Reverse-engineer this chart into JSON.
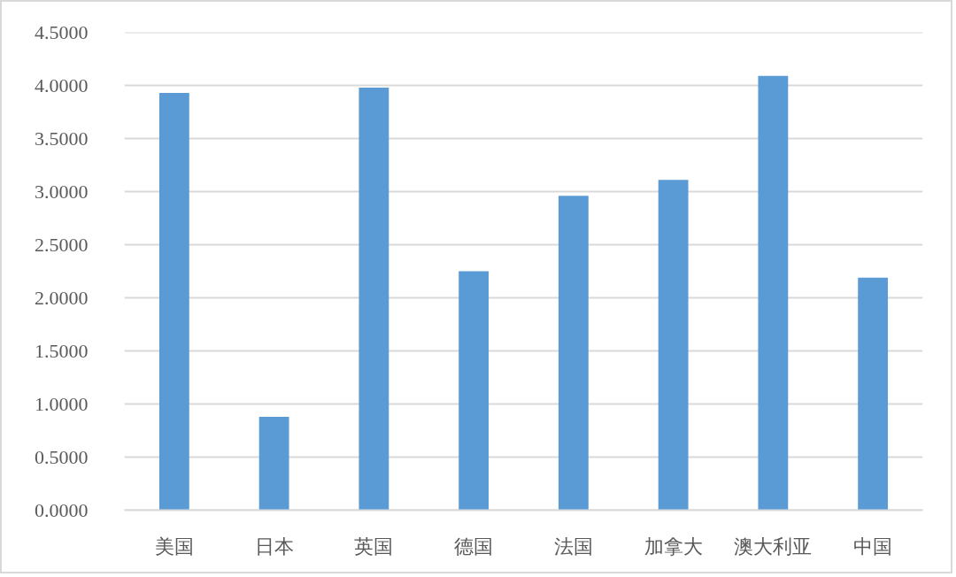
{
  "chart_data": {
    "type": "bar",
    "categories": [
      "美国",
      "日本",
      "英国",
      "德国",
      "法国",
      "加拿大",
      "澳大利亚",
      "中国"
    ],
    "values": [
      3.93,
      0.88,
      3.98,
      2.25,
      2.96,
      3.11,
      4.09,
      2.19
    ],
    "color": "#5b9bd5",
    "ylim": [
      0,
      4.5
    ],
    "yticks": [
      {
        "value": 0,
        "label": "0.0000"
      },
      {
        "value": 0.5,
        "label": "0.5000"
      },
      {
        "value": 1,
        "label": "1.0000"
      },
      {
        "value": 1.5,
        "label": "1.5000"
      },
      {
        "value": 2,
        "label": "2.0000"
      },
      {
        "value": 2.5,
        "label": "2.5000"
      },
      {
        "value": 3,
        "label": "3.0000"
      },
      {
        "value": 3.5,
        "label": "3.5000"
      },
      {
        "value": 4,
        "label": "4.0000"
      },
      {
        "value": 4.5,
        "label": "4.5000"
      }
    ],
    "grid": "y"
  }
}
